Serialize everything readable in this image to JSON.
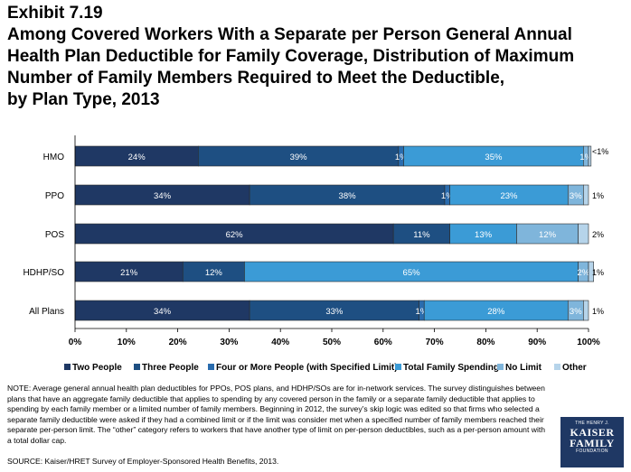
{
  "title": {
    "exhibit": "Exhibit 7.19",
    "lines": [
      "Among Covered Workers With a Separate per Person General Annual",
      "Health Plan Deductible for Family Coverage, Distribution of Maximum",
      "Number of Family Members Required to Meet the Deductible,",
      "by Plan Type, 2013"
    ]
  },
  "chart_data": {
    "type": "bar",
    "orientation": "horizontal",
    "stacked": "percent",
    "categories": [
      "HMO",
      "PPO",
      "POS",
      "HDHP/SO",
      "All Plans"
    ],
    "series": [
      {
        "name": "Two People",
        "color": "#1f3864",
        "values": [
          24,
          34,
          62,
          21,
          34
        ],
        "labels": [
          "24%",
          "34%",
          "62%",
          "21%",
          "34%"
        ]
      },
      {
        "name": "Three People",
        "color": "#1e4f82",
        "values": [
          39,
          38,
          11,
          12,
          33
        ],
        "labels": [
          "39%",
          "38%",
          "11%",
          "12%",
          "33%"
        ]
      },
      {
        "name": "Four or More People (with Specified Limit)",
        "color": "#2a6cae",
        "values": [
          1,
          1,
          0,
          0,
          1
        ],
        "labels": [
          "1%",
          "1%",
          "",
          "",
          "1%"
        ]
      },
      {
        "name": "Total Family Spending",
        "color": "#3b9bd6",
        "values": [
          35,
          23,
          13,
          65,
          28
        ],
        "labels": [
          "35%",
          "23%",
          "13%",
          "65%",
          "28%"
        ]
      },
      {
        "name": "No Limit",
        "color": "#7fb5db",
        "values": [
          1,
          3,
          12,
          2,
          3
        ],
        "labels": [
          "1%",
          "3%",
          "12%",
          "2%",
          "3%"
        ]
      },
      {
        "name": "Other",
        "color": "#b6d4ea",
        "values": [
          0.5,
          1,
          2,
          1,
          1
        ],
        "labels": [
          "",
          "",
          "",
          "",
          ""
        ]
      }
    ],
    "right_labels": [
      "<1%",
      "1%",
      "2%",
      "1%",
      "1%"
    ],
    "xaxis": {
      "min": 0,
      "max": 100,
      "ticks": [
        "0%",
        "10%",
        "20%",
        "30%",
        "40%",
        "50%",
        "60%",
        "70%",
        "80%",
        "90%",
        "100%"
      ]
    },
    "legend_position": "bottom",
    "grid": false
  },
  "note": "NOTE: Average general annual health plan deductibles for PPOs, POS plans, and HDHP/SOs are for in-network services. The survey distinguishes between plans that have an aggregate family deductible that applies to spending by any covered person in the family or a separate family deductible that applies to spending by each family member or a limited number of family members.  Beginning in 2012, the survey’s skip logic was edited so that firms who selected a separate family deductible were asked if they had a combined limit or if the limit was consider met when a specified number of family members reached their separate per-person limit. The “other” category refers to workers that have another type of limit on per-person deductibles, such as a per-person amount with a total dollar cap.",
  "source": "SOURCE:  Kaiser/HRET Survey of Employer-Sponsored Health Benefits, 2013.",
  "logo": {
    "top": "THE HENRY J.",
    "line1": "KAISER",
    "line2": "FAMILY",
    "bottom": "FOUNDATION"
  }
}
